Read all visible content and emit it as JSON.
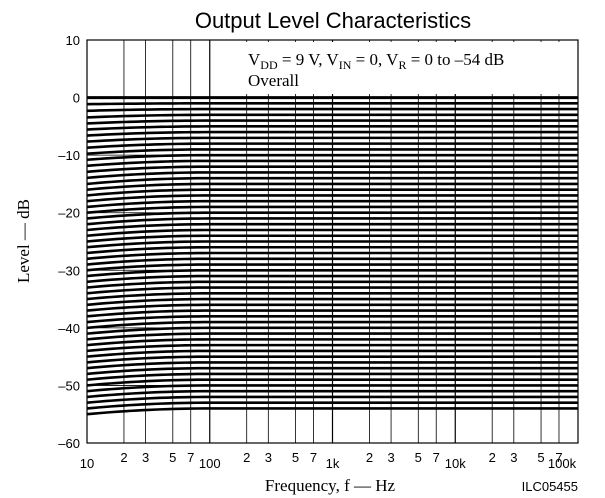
{
  "chart_data": {
    "type": "line",
    "title": "Output Level Characteristics",
    "xlabel": "Frequency, f — Hz",
    "ylabel": "Level — dB",
    "xscale": "log",
    "xlim": [
      10,
      100000
    ],
    "ylim": [
      -60,
      10
    ],
    "grid": true,
    "x_ticks_major": [
      {
        "value": 10,
        "label": "10"
      },
      {
        "value": 100,
        "label": "100"
      },
      {
        "value": 1000,
        "label": "1k"
      },
      {
        "value": 10000,
        "label": "10k"
      },
      {
        "value": 100000,
        "label": "100k"
      }
    ],
    "x_ticks_minor": [
      {
        "value": 20,
        "label": "2"
      },
      {
        "value": 30,
        "label": "3"
      },
      {
        "value": 50,
        "label": "5"
      },
      {
        "value": 70,
        "label": "7"
      },
      {
        "value": 200,
        "label": "2"
      },
      {
        "value": 300,
        "label": "3"
      },
      {
        "value": 500,
        "label": "5"
      },
      {
        "value": 700,
        "label": "7"
      },
      {
        "value": 2000,
        "label": "2"
      },
      {
        "value": 3000,
        "label": "3"
      },
      {
        "value": 5000,
        "label": "5"
      },
      {
        "value": 7000,
        "label": "7"
      },
      {
        "value": 20000,
        "label": "2"
      },
      {
        "value": 30000,
        "label": "3"
      },
      {
        "value": 50000,
        "label": "5"
      },
      {
        "value": 70000,
        "label": "7"
      }
    ],
    "x_gridlines": [
      20,
      30,
      50,
      70,
      100,
      200,
      300,
      500,
      700,
      1000,
      2000,
      3000,
      5000,
      7000,
      10000,
      20000,
      30000,
      50000,
      70000
    ],
    "y_ticks": [
      {
        "value": 10,
        "label": "10"
      },
      {
        "value": 0,
        "label": "0"
      },
      {
        "value": -10,
        "label": "–10"
      },
      {
        "value": -20,
        "label": "–20"
      },
      {
        "value": -30,
        "label": "–30"
      },
      {
        "value": -40,
        "label": "–40"
      },
      {
        "value": -50,
        "label": "–50"
      },
      {
        "value": -60,
        "label": "–60"
      }
    ],
    "annotation": {
      "line1": [
        {
          "text": "V",
          "baseline": "normal"
        },
        {
          "text": "DD",
          "baseline": "sub"
        },
        {
          "text": " = 9 V, V",
          "baseline": "normal"
        },
        {
          "text": "IN",
          "baseline": "sub"
        },
        {
          "text": " = 0, V",
          "baseline": "normal"
        },
        {
          "text": "R",
          "baseline": "sub"
        },
        {
          "text": " = 0 to –54 dB",
          "baseline": "normal"
        }
      ],
      "line2": "Overall"
    },
    "figure_id": "ILC05455",
    "series_family": {
      "count": 55,
      "levels_db": [
        0,
        -1,
        -2,
        -3,
        -4,
        -5,
        -6,
        -7,
        -8,
        -9,
        -10,
        -11,
        -12,
        -13,
        -14,
        -15,
        -16,
        -17,
        -18,
        -19,
        -20,
        -21,
        -22,
        -23,
        -24,
        -25,
        -26,
        -27,
        -28,
        -29,
        -30,
        -31,
        -32,
        -33,
        -34,
        -35,
        -36,
        -37,
        -38,
        -39,
        -40,
        -41,
        -42,
        -43,
        -44,
        -45,
        -46,
        -47,
        -48,
        -49,
        -50,
        -51,
        -52,
        -53,
        -54
      ],
      "low_frequency_rolloff_at_10hz_db": [
        0,
        0.15,
        0.3,
        0.45,
        0.5,
        0.55,
        0.6,
        0.65,
        0.7,
        0.75,
        0.8,
        0.85,
        0.9,
        0.95,
        1.0,
        1.0,
        1.0,
        1.0,
        1.0,
        1.0,
        1.0,
        1.0,
        1.0,
        1.0,
        1.0,
        1.0,
        1.0,
        1.0,
        1.0,
        1.0,
        1.0,
        1.0,
        1.0,
        1.0,
        1.0,
        1.0,
        1.0,
        1.0,
        1.0,
        1.0,
        1.0,
        1.0,
        1.0,
        1.0,
        1.0,
        1.0,
        1.0,
        1.0,
        1.0,
        1.0,
        1.0,
        1.0,
        1.0,
        1.0,
        1.0
      ],
      "rolloff_corner_hz": 100,
      "color": "#000000"
    }
  }
}
